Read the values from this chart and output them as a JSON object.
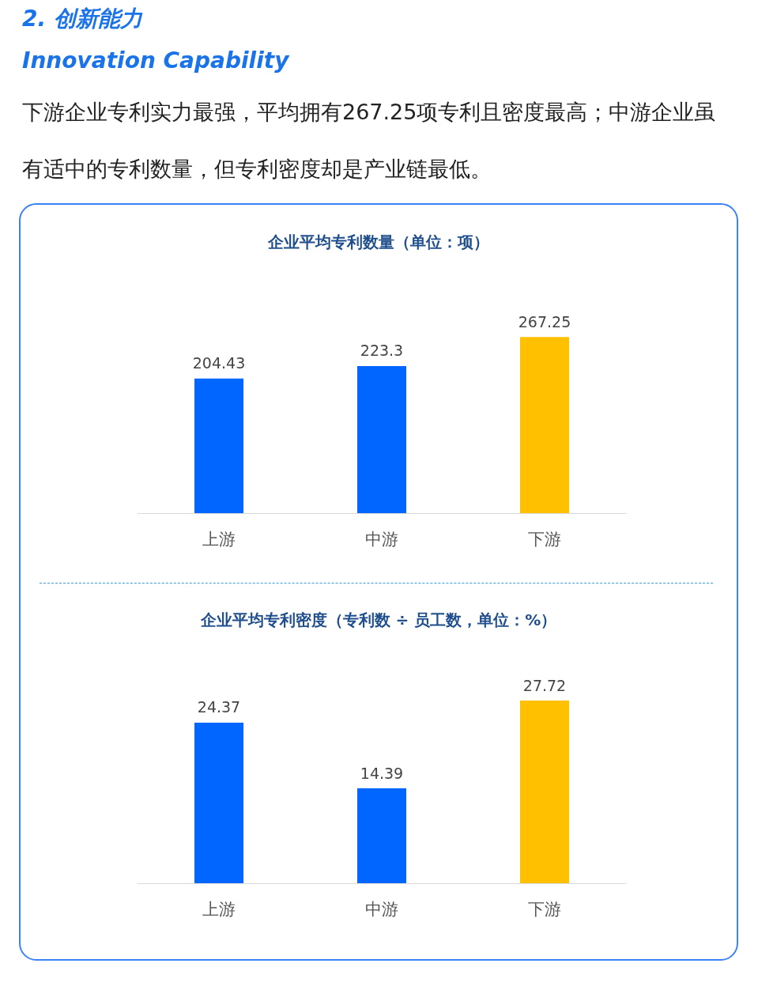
{
  "chart_data": [
    {
      "type": "bar",
      "title": "企业平均专利数量（单位：项）",
      "annotations": [
        "2. 创新能力",
        "Innovation Capability",
        "下游企业专利实力最强，平均拥有267.25项专利且密度最高；中游企业虽有适中的专利数量，但专利密度却是产业链最低。"
      ],
      "categories": [
        "上游",
        "中游",
        "下游"
      ],
      "values": [
        204.43,
        223.3,
        267.25
      ],
      "colors": [
        "#0066ff",
        "#0066ff",
        "#ffc000"
      ],
      "data_labels": true,
      "tick_labels": "x",
      "grid": false
    },
    {
      "type": "bar",
      "title": "企业平均专利密度（专利数 ÷ 员工数，单位：%）",
      "categories": [
        "上游",
        "中游",
        "下游"
      ],
      "values": [
        24.37,
        14.39,
        27.72
      ],
      "colors": [
        "#0066ff",
        "#0066ff",
        "#ffc000"
      ],
      "data_labels": true,
      "tick_labels": "x",
      "grid": false
    }
  ]
}
